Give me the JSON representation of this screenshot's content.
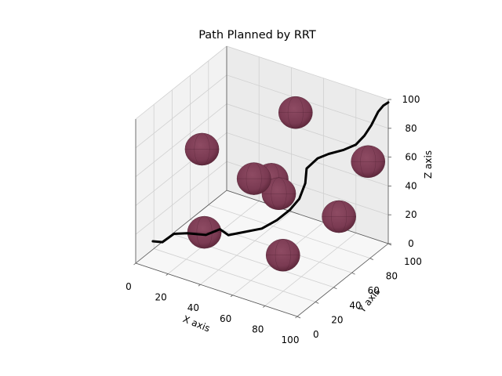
{
  "chart_data": {
    "type": "line",
    "projection": "3d",
    "title": "Path Planned by RRT",
    "xlabel": "X axis",
    "ylabel": "Y axis",
    "zlabel": "Z axis",
    "xlim": [
      0,
      100
    ],
    "ylim": [
      0,
      100
    ],
    "zlim": [
      0,
      100
    ],
    "xticks": [
      0,
      20,
      40,
      60,
      80,
      100
    ],
    "yticks": [
      0,
      20,
      40,
      60,
      80,
      100
    ],
    "zticks": [
      0,
      20,
      40,
      60,
      80,
      100
    ],
    "grid": true,
    "path_color": "#000000",
    "obstacle_color": "#7a3a52",
    "path": [
      [
        5,
        10,
        12
      ],
      [
        12,
        8,
        15
      ],
      [
        18,
        10,
        22
      ],
      [
        25,
        12,
        24
      ],
      [
        35,
        15,
        25
      ],
      [
        42,
        18,
        30
      ],
      [
        45,
        22,
        25
      ],
      [
        52,
        25,
        28
      ],
      [
        60,
        32,
        30
      ],
      [
        66,
        38,
        35
      ],
      [
        70,
        45,
        40
      ],
      [
        72,
        52,
        45
      ],
      [
        74,
        55,
        55
      ],
      [
        72,
        60,
        62
      ],
      [
        76,
        65,
        68
      ],
      [
        80,
        70,
        70
      ],
      [
        86,
        76,
        72
      ],
      [
        90,
        82,
        74
      ],
      [
        92,
        88,
        78
      ],
      [
        94,
        92,
        84
      ],
      [
        96,
        96,
        92
      ],
      [
        98,
        98,
        96
      ],
      [
        100,
        100,
        98
      ]
    ],
    "obstacles": [
      {
        "x": 29,
        "y": 24,
        "z": 20,
        "r": 8
      },
      {
        "x": 72,
        "y": 34,
        "z": 15,
        "r": 8
      },
      {
        "x": 14,
        "y": 48,
        "z": 60,
        "r": 8
      },
      {
        "x": 45,
        "y": 50,
        "z": 50,
        "r": 8
      },
      {
        "x": 53,
        "y": 55,
        "z": 50,
        "r": 8
      },
      {
        "x": 61,
        "y": 49,
        "z": 46,
        "r": 8
      },
      {
        "x": 46,
        "y": 94,
        "z": 74,
        "r": 8
      },
      {
        "x": 92,
        "y": 60,
        "z": 36,
        "r": 8
      },
      {
        "x": 92,
        "y": 92,
        "z": 58,
        "r": 8
      }
    ]
  }
}
